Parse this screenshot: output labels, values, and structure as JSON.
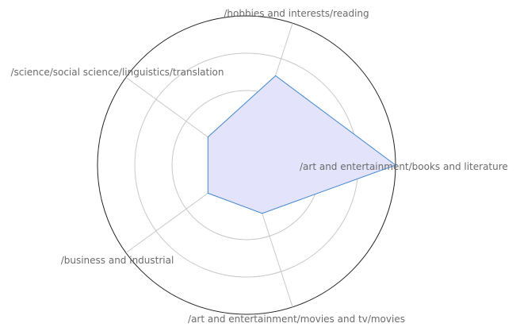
{
  "chart_data": {
    "type": "radar",
    "title": "",
    "categories": [
      "/art and entertainment/books and literature",
      "/hobbies and interests/reading",
      "/science/social science/linguistics/translation",
      "/business and industrial",
      "/art and entertainment/movies and tv/movies"
    ],
    "series": [
      {
        "values": [
          1.0,
          0.63,
          0.32,
          0.32,
          0.34
        ]
      }
    ],
    "rlim": [
      0,
      1
    ],
    "grid": true,
    "colors": {
      "fill": "#e3e3fb",
      "line": "#3f86cf",
      "grid": "#c8c8c8",
      "outer": "#222222",
      "label": "#6b6b6b"
    }
  }
}
